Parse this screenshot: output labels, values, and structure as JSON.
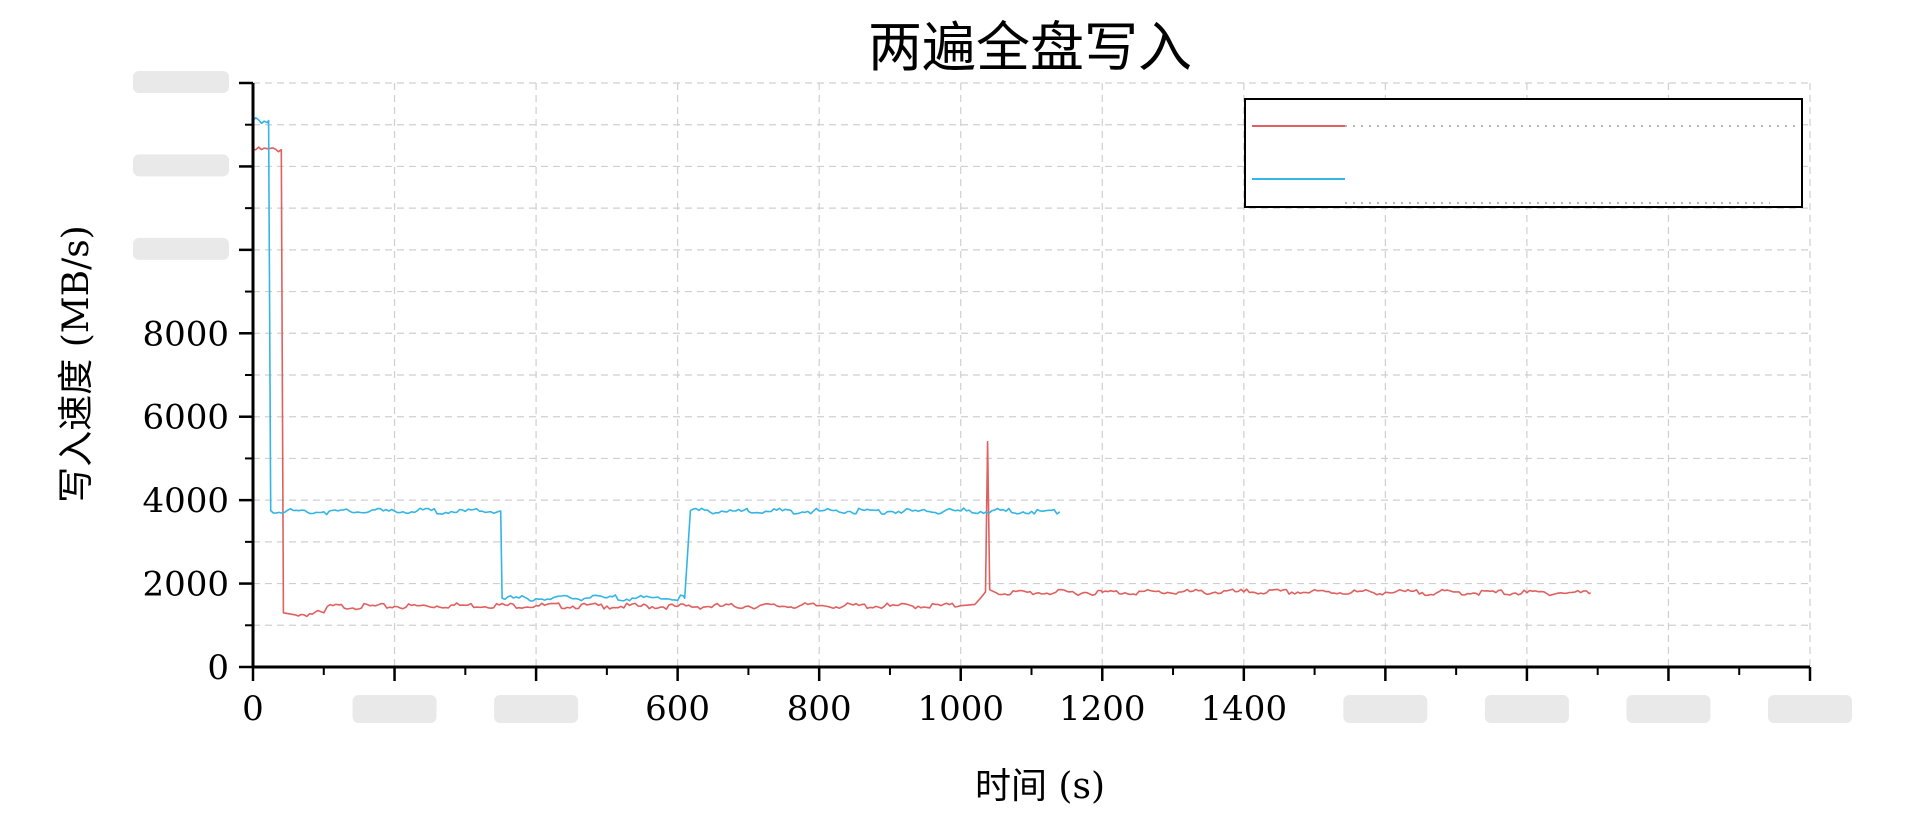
{
  "chart_data": {
    "type": "line",
    "title": "两遍全盘写入",
    "xlabel": "时间 (s)",
    "ylabel": "写入速度 (MB/s)",
    "xlim": [
      0,
      2200
    ],
    "ylim": [
      0,
      14000
    ],
    "x_ticks": [
      0,
      200,
      400,
      600,
      800,
      1000,
      1200,
      1400,
      1600,
      1800,
      2000,
      2200
    ],
    "x_tick_labels": [
      "0",
      "",
      "",
      "600",
      "800",
      "1000",
      "1200",
      "1400",
      "",
      "",
      "",
      ""
    ],
    "y_ticks": [
      0,
      2000,
      4000,
      6000,
      8000,
      10000,
      12000,
      14000
    ],
    "y_tick_labels": [
      "0",
      "2000",
      "4000",
      "6000",
      "8000",
      "",
      "",
      ""
    ],
    "grid": true,
    "legend_position": "top-right",
    "series": [
      {
        "color": "#e06060",
        "points": [
          [
            0,
            12400
          ],
          [
            40,
            12400
          ],
          [
            43,
            1300
          ],
          [
            60,
            1250
          ],
          [
            100,
            1300
          ],
          [
            105,
            1450
          ],
          [
            200,
            1450
          ],
          [
            300,
            1480
          ],
          [
            400,
            1470
          ],
          [
            500,
            1460
          ],
          [
            600,
            1450
          ],
          [
            700,
            1460
          ],
          [
            800,
            1470
          ],
          [
            900,
            1460
          ],
          [
            1000,
            1470
          ],
          [
            1020,
            1500
          ],
          [
            1028,
            1650
          ],
          [
            1035,
            1800
          ],
          [
            1038,
            5400
          ],
          [
            1041,
            1850
          ],
          [
            1050,
            1780
          ],
          [
            1200,
            1790
          ],
          [
            1400,
            1800
          ],
          [
            1600,
            1790
          ],
          [
            1800,
            1780
          ],
          [
            1890,
            1780
          ]
        ]
      },
      {
        "color": "#33b5e5",
        "points": [
          [
            0,
            13100
          ],
          [
            22,
            13100
          ],
          [
            25,
            3750
          ],
          [
            100,
            3720
          ],
          [
            200,
            3740
          ],
          [
            300,
            3730
          ],
          [
            350,
            3740
          ],
          [
            352,
            1650
          ],
          [
            400,
            1640
          ],
          [
            500,
            1660
          ],
          [
            610,
            1650
          ],
          [
            618,
            3750
          ],
          [
            700,
            3730
          ],
          [
            800,
            3740
          ],
          [
            900,
            3730
          ],
          [
            1000,
            3740
          ],
          [
            1100,
            3730
          ],
          [
            1140,
            3720
          ]
        ]
      }
    ]
  }
}
